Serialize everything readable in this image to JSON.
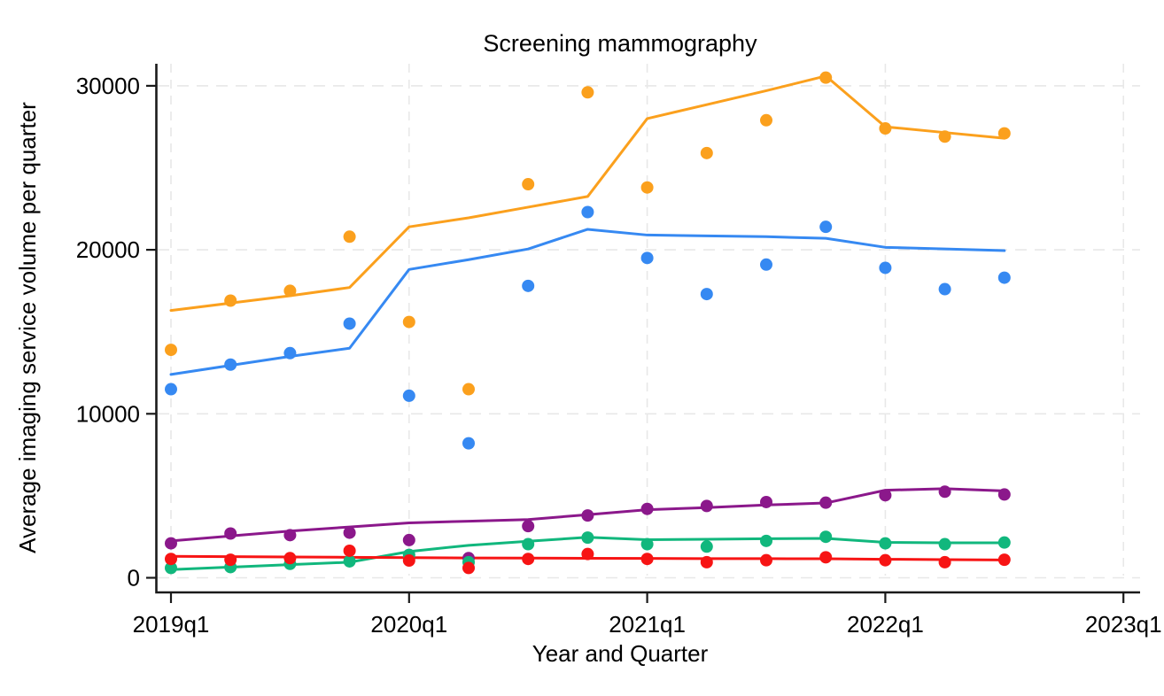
{
  "page": {
    "background": "#ffffff",
    "text_color": "#000000",
    "axis_color": "#1a1a1a",
    "gridline_color": "#e8e8e8"
  },
  "chart_data": {
    "type": "scatter",
    "subtype": "scatter-with-fitted-lines",
    "title": "Screening mammography",
    "xlabel": "Year and Quarter",
    "ylabel": "Average imaging service volume per quarter",
    "grid": true,
    "legend_position": "none",
    "x_axis": {
      "tick_labels": [
        "2019q1",
        "2020q1",
        "2021q1",
        "2022q1",
        "2023q1"
      ],
      "tick_quarter_index": [
        0,
        4,
        8,
        12,
        16
      ],
      "range_quarters": 16
    },
    "y_axis": {
      "ticks": [
        0,
        10000,
        20000,
        30000
      ],
      "tick_labels": [
        "0",
        "10000",
        "20000",
        "30000"
      ],
      "ylim": [
        0,
        31500
      ]
    },
    "quarters": [
      "2019q1",
      "2019q2",
      "2019q3",
      "2019q4",
      "2020q1",
      "2020q2",
      "2020q3",
      "2020q4",
      "2021q1",
      "2021q2",
      "2021q3",
      "2021q4",
      "2022q1",
      "2022q2",
      "2022q3"
    ],
    "series": [
      {
        "name": "orange",
        "color": "#FBA01D",
        "points": [
          13900,
          16900,
          17500,
          20800,
          15600,
          11500,
          24000,
          29600,
          23800,
          25900,
          27900,
          30500,
          27400,
          26900,
          27100
        ],
        "trend": [
          16300,
          16750,
          17200,
          17700,
          21400,
          21950,
          22600,
          23250,
          28000,
          28850,
          29700,
          30600,
          27500,
          27150,
          26800
        ]
      },
      {
        "name": "blue",
        "color": "#3689F2",
        "points": [
          11500,
          13000,
          13700,
          15500,
          11100,
          8200,
          17800,
          22300,
          19500,
          17300,
          19100,
          21400,
          18900,
          17600,
          18300
        ],
        "trend": [
          12400,
          12950,
          13500,
          14000,
          18800,
          19400,
          20050,
          21250,
          20900,
          20850,
          20800,
          20700,
          20150,
          20050,
          19950
        ]
      },
      {
        "name": "purple",
        "color": "#8B188B",
        "points": [
          2100,
          2700,
          2600,
          2750,
          2300,
          1200,
          3150,
          3800,
          4200,
          4380,
          4620,
          4580,
          5030,
          5250,
          5080
        ],
        "trend": [
          2250,
          2550,
          2850,
          3100,
          3350,
          3450,
          3550,
          3850,
          4150,
          4280,
          4440,
          4560,
          5340,
          5430,
          5300
        ]
      },
      {
        "name": "green",
        "color": "#11B77D",
        "points": [
          600,
          650,
          850,
          1000,
          1400,
          950,
          2050,
          2450,
          2050,
          1900,
          2250,
          2500,
          2100,
          2050,
          2150
        ],
        "trend": [
          500,
          650,
          800,
          950,
          1600,
          1980,
          2230,
          2470,
          2320,
          2350,
          2380,
          2400,
          2160,
          2130,
          2130
        ]
      },
      {
        "name": "red",
        "color": "#F71414",
        "points": [
          1150,
          1100,
          1200,
          1650,
          1050,
          600,
          1150,
          1450,
          1150,
          950,
          1070,
          1250,
          1070,
          950,
          1100
        ],
        "trend": [
          1310,
          1290,
          1270,
          1250,
          1230,
          1210,
          1200,
          1190,
          1180,
          1170,
          1165,
          1160,
          1130,
          1110,
          1090
        ]
      }
    ]
  }
}
